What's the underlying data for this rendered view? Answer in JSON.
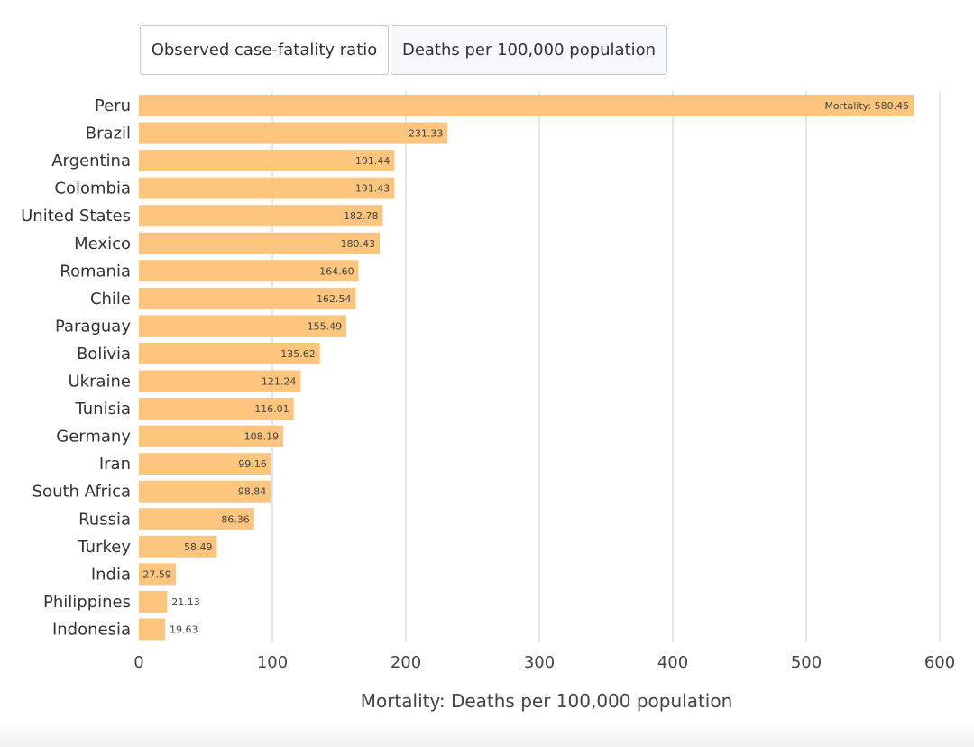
{
  "tabs": {
    "case_fatality_label": "Observed case-fatality ratio",
    "deaths_label": "Deaths per 100,000 population"
  },
  "colors": {
    "bar": "#fdc57e",
    "grid": "#cccccc",
    "text": "#333333"
  },
  "chart_data": {
    "type": "bar",
    "orientation": "horizontal",
    "categories": [
      "Peru",
      "Brazil",
      "Argentina",
      "Colombia",
      "United States",
      "Mexico",
      "Romania",
      "Chile",
      "Paraguay",
      "Bolivia",
      "Ukraine",
      "Tunisia",
      "Germany",
      "Iran",
      "South Africa",
      "Russia",
      "Turkey",
      "India",
      "Philippines",
      "Indonesia"
    ],
    "values": [
      580.45,
      231.33,
      191.44,
      191.43,
      182.78,
      180.43,
      164.6,
      162.54,
      155.49,
      135.62,
      121.24,
      116.01,
      108.19,
      99.16,
      98.84,
      86.36,
      58.49,
      27.59,
      21.13,
      19.63
    ],
    "value_labels": [
      "Mortality: 580.45",
      "231.33",
      "191.44",
      "191.43",
      "182.78",
      "180.43",
      "164.60",
      "162.54",
      "155.49",
      "135.62",
      "121.24",
      "116.01",
      "108.19",
      "99.16",
      "98.84",
      "86.36",
      "58.49",
      "27.59",
      "21.13",
      "19.63"
    ],
    "xlim": [
      0,
      600
    ],
    "xticks": [
      0,
      100,
      200,
      300,
      400,
      500,
      600
    ],
    "xlabel": "Mortality: Deaths per 100,000 population",
    "ylabel": "",
    "title": "",
    "grid": true,
    "legend": "none"
  }
}
